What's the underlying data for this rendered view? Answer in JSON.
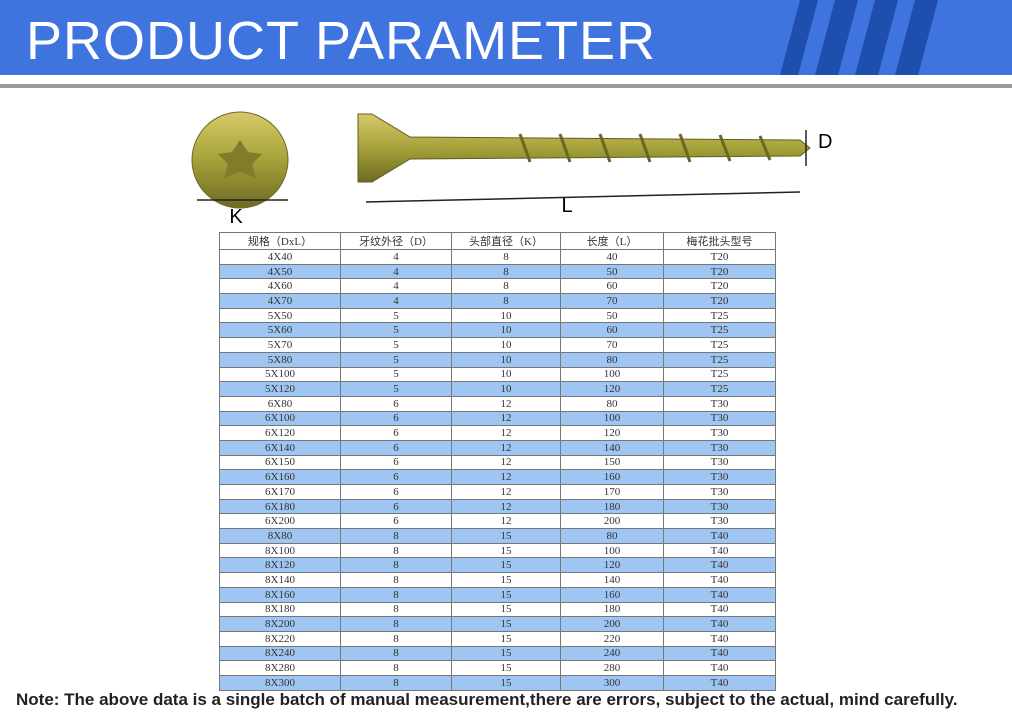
{
  "header": {
    "title": "PRODUCT PARAMETER"
  },
  "figure": {
    "head_label": "K",
    "length_label": "L",
    "diameter_label": "D"
  },
  "table": {
    "columns": [
      "规格（DxL）",
      "牙纹外径（D）",
      "头部直径（K）",
      "长度（L）",
      "梅花批头型号"
    ],
    "rows": [
      [
        "4X40",
        4,
        8,
        40,
        "T20"
      ],
      [
        "4X50",
        4,
        8,
        50,
        "T20"
      ],
      [
        "4X60",
        4,
        8,
        60,
        "T20"
      ],
      [
        "4X70",
        4,
        8,
        70,
        "T20"
      ],
      [
        "5X50",
        5,
        10,
        50,
        "T25"
      ],
      [
        "5X60",
        5,
        10,
        60,
        "T25"
      ],
      [
        "5X70",
        5,
        10,
        70,
        "T25"
      ],
      [
        "5X80",
        5,
        10,
        80,
        "T25"
      ],
      [
        "5X100",
        5,
        10,
        100,
        "T25"
      ],
      [
        "5X120",
        5,
        10,
        120,
        "T25"
      ],
      [
        "6X80",
        6,
        12,
        80,
        "T30"
      ],
      [
        "6X100",
        6,
        12,
        100,
        "T30"
      ],
      [
        "6X120",
        6,
        12,
        120,
        "T30"
      ],
      [
        "6X140",
        6,
        12,
        140,
        "T30"
      ],
      [
        "6X150",
        6,
        12,
        150,
        "T30"
      ],
      [
        "6X160",
        6,
        12,
        160,
        "T30"
      ],
      [
        "6X170",
        6,
        12,
        170,
        "T30"
      ],
      [
        "6X180",
        6,
        12,
        180,
        "T30"
      ],
      [
        "6X200",
        6,
        12,
        200,
        "T30"
      ],
      [
        "8X80",
        8,
        15,
        80,
        "T40"
      ],
      [
        "8X100",
        8,
        15,
        100,
        "T40"
      ],
      [
        "8X120",
        8,
        15,
        120,
        "T40"
      ],
      [
        "8X140",
        8,
        15,
        140,
        "T40"
      ],
      [
        "8X160",
        8,
        15,
        160,
        "T40"
      ],
      [
        "8X180",
        8,
        15,
        180,
        "T40"
      ],
      [
        "8X200",
        8,
        15,
        200,
        "T40"
      ],
      [
        "8X220",
        8,
        15,
        220,
        "T40"
      ],
      [
        "8X240",
        8,
        15,
        240,
        "T40"
      ],
      [
        "8X280",
        8,
        15,
        280,
        "T40"
      ],
      [
        "8X300",
        8,
        15,
        300,
        "T40"
      ]
    ]
  },
  "note": "Note: The above data is a single batch of manual measurement,there are errors, subject to the actual, mind carefully."
}
